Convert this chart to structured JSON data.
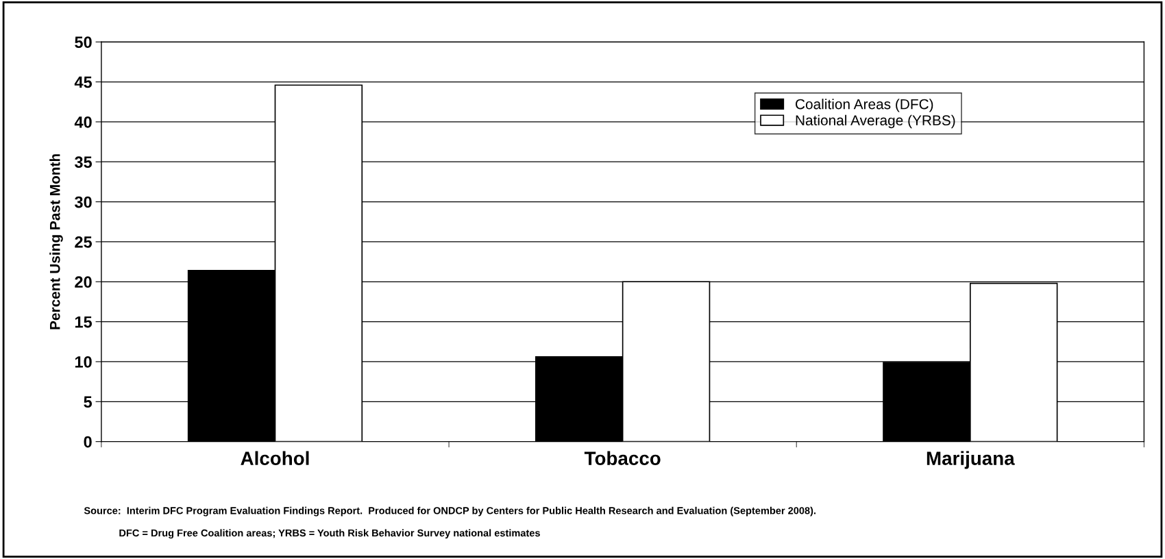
{
  "chart_data": {
    "type": "bar",
    "ylabel": "Percent Using Past Month",
    "categories": [
      "Alcohol",
      "Tobacco",
      "Marijuana"
    ],
    "series": [
      {
        "name": "Coalition Areas (DFC)",
        "color": "#000000",
        "values": [
          21.4,
          10.6,
          9.9
        ]
      },
      {
        "name": "National Average (YRBS)",
        "color": "#ffffff",
        "values": [
          44.6,
          20.0,
          19.8
        ]
      }
    ],
    "ylim": [
      0,
      50
    ],
    "yticks": [
      0,
      5,
      10,
      15,
      20,
      25,
      30,
      35,
      40,
      45,
      50
    ],
    "grid": "y",
    "legend": "top right",
    "annotations": [
      "Source:  Interim DFC Program Evaluation Findings Report.  Produced for ONDCP by Centers for Public Health Research and Evaluation (September 2008).",
      "DFC = Drug Free Coalition areas; YRBS = Youth Risk Behavior Survey national estimates"
    ]
  }
}
